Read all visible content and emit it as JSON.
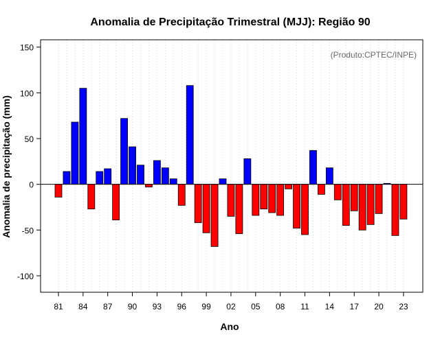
{
  "chart_data": {
    "type": "bar",
    "title": "Anomalia de Precipitação Trimestral (MJJ): Região 90",
    "credit": "(Produto:CPTEC/INPE)",
    "xlabel": "Ano",
    "ylabel": "Anomalia de precipitação (mm)",
    "ylim": [
      -118,
      158
    ],
    "yticks": [
      -100,
      -50,
      0,
      50,
      100,
      150
    ],
    "ytick_labels": [
      "-100",
      "-50",
      "0",
      "50",
      "100",
      "150"
    ],
    "xtick_labels": [
      "81",
      "84",
      "87",
      "90",
      "93",
      "96",
      "99",
      "02",
      "05",
      "08",
      "11",
      "14",
      "17",
      "20",
      "23"
    ],
    "years": [
      1981,
      1982,
      1983,
      1984,
      1985,
      1986,
      1987,
      1988,
      1989,
      1990,
      1991,
      1992,
      1993,
      1994,
      1995,
      1996,
      1997,
      1998,
      1999,
      2000,
      2001,
      2002,
      2003,
      2004,
      2005,
      2006,
      2007,
      2008,
      2009,
      2010,
      2011,
      2012,
      2013,
      2014,
      2015,
      2016,
      2017,
      2018,
      2019,
      2020,
      2021,
      2022,
      2023
    ],
    "values": [
      -14,
      14,
      68,
      105,
      -27,
      14,
      17,
      -39,
      72,
      41,
      21,
      -3,
      26,
      18,
      6,
      -23,
      108,
      -42,
      -53,
      -68,
      6,
      -35,
      -54,
      28,
      -34,
      -27,
      -31,
      -34,
      -5,
      -48,
      -55,
      37,
      -11,
      18,
      -17,
      -45,
      -29,
      -50,
      -44,
      -32,
      1,
      -56,
      -38
    ],
    "positive_color": "#0000ff",
    "negative_color": "#ff0000"
  }
}
